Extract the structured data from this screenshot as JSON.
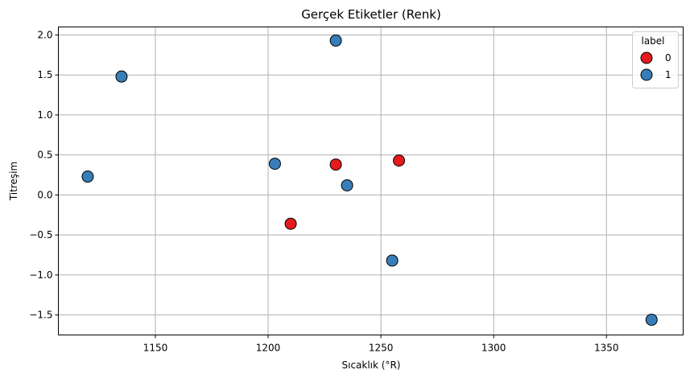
{
  "chart_data": {
    "type": "scatter",
    "title": "Gerçek Etiketler (Renk)",
    "xlabel": "Sıcaklık (°R)",
    "ylabel": "Titreşim",
    "xlim": [
      1107,
      1384
    ],
    "ylim": [
      -1.75,
      2.1
    ],
    "xticks": [
      1150,
      1200,
      1250,
      1300,
      1350
    ],
    "yticks": [
      -1.5,
      -1.0,
      -0.5,
      0.0,
      0.5,
      1.0,
      1.5,
      2.0
    ],
    "xtick_labels": [
      "1150",
      "1200",
      "1250",
      "1300",
      "1350"
    ],
    "ytick_labels": [
      "−1.5",
      "−1.0",
      "−0.5",
      "0.0",
      "0.5",
      "1.0",
      "1.5",
      "2.0"
    ],
    "grid": true,
    "legend": {
      "title": "label",
      "placement": "top-right"
    },
    "series": [
      {
        "name": "0",
        "color": "#e41a1c",
        "points": [
          {
            "x": 1210,
            "y": -0.36
          },
          {
            "x": 1230,
            "y": 0.38
          },
          {
            "x": 1258,
            "y": 0.43
          }
        ]
      },
      {
        "name": "1",
        "color": "#377eb8",
        "points": [
          {
            "x": 1120,
            "y": 0.23
          },
          {
            "x": 1135,
            "y": 1.48
          },
          {
            "x": 1203,
            "y": 0.39
          },
          {
            "x": 1230,
            "y": 1.93
          },
          {
            "x": 1235,
            "y": 0.12
          },
          {
            "x": 1255,
            "y": -0.82
          },
          {
            "x": 1370,
            "y": -1.56
          }
        ]
      }
    ]
  }
}
